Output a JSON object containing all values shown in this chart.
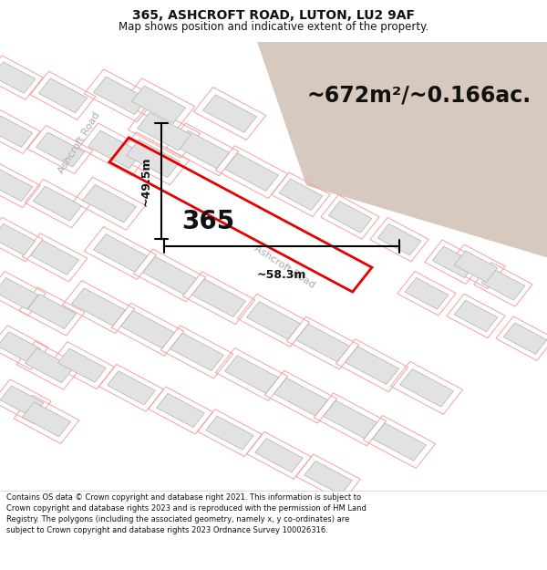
{
  "title_line1": "365, ASHCROFT ROAD, LUTON, LU2 9AF",
  "title_line2": "Map shows position and indicative extent of the property.",
  "area_text": "~672m²/~0.166ac.",
  "label_365": "365",
  "dim_width": "~58.3m",
  "dim_height": "~49.5m",
  "road_label_diag": "Ashcroft Road",
  "road_label_vert": "Ashcroft Road",
  "footer_text": "Contains OS data © Crown copyright and database right 2021. This information is subject to Crown copyright and database rights 2023 and is reproduced with the permission of HM Land Registry. The polygons (including the associated geometry, namely x, y co-ordinates) are subject to Crown copyright and database rights 2023 Ordnance Survey 100026316.",
  "map_bg": "#f7f0eb",
  "building_fill": "#e2e2e2",
  "building_edge": "#b0b0b0",
  "pink_line": "#f5a0a0",
  "red_polygon": "#e80000",
  "beige_corner": "#d8c9be",
  "road_color": "#ffffff",
  "footer_bg": "#ffffff",
  "title_bg": "#ffffff",
  "title_fontsize": 10,
  "subtitle_fontsize": 8.5,
  "area_fontsize": 17,
  "label_fontsize": 20,
  "dim_fontsize": 9,
  "road_fontsize": 8,
  "footer_fontsize": 6.0
}
